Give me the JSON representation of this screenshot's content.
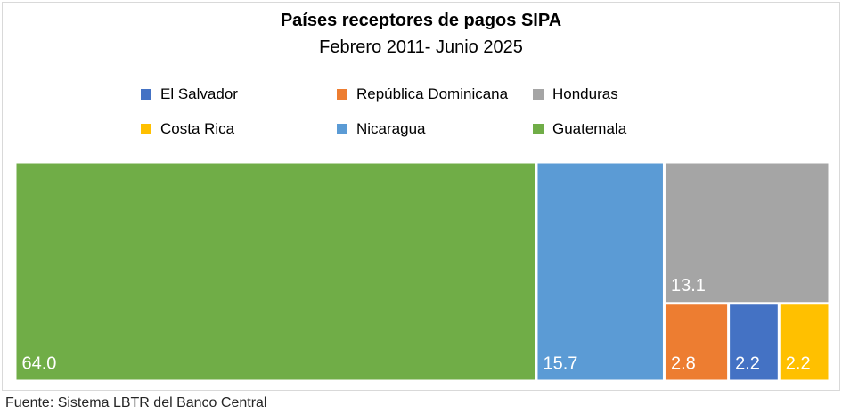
{
  "source_note": "Fuente: Sistema LBTR del Banco Central",
  "colors": {
    "El Salvador": "#4472c4",
    "República Dominicana": "#ed7d31",
    "Honduras": "#a5a5a5",
    "Costa Rica": "#ffc000",
    "Nicaragua": "#5b9bd5",
    "Guatemala": "#70ad47"
  },
  "chart_data": {
    "type": "treemap",
    "title": "Países receptores de pagos SIPA",
    "subtitle": "Febrero 2011- Junio 2025",
    "legend": [
      "El Salvador",
      "República Dominicana",
      "Honduras",
      "Costa Rica",
      "Nicaragua",
      "Guatemala"
    ],
    "legend_placement": "top",
    "items": [
      {
        "name": "Guatemala",
        "value": 64.0,
        "label": "64.0"
      },
      {
        "name": "Nicaragua",
        "value": 15.7,
        "label": "15.7"
      },
      {
        "name": "Honduras",
        "value": 13.1,
        "label": "13.1"
      },
      {
        "name": "República Dominicana",
        "value": 2.8,
        "label": "2.8"
      },
      {
        "name": "El Salvador",
        "value": 2.2,
        "label": "2.2"
      },
      {
        "name": "Costa Rica",
        "value": 2.2,
        "label": "2.2"
      }
    ]
  }
}
